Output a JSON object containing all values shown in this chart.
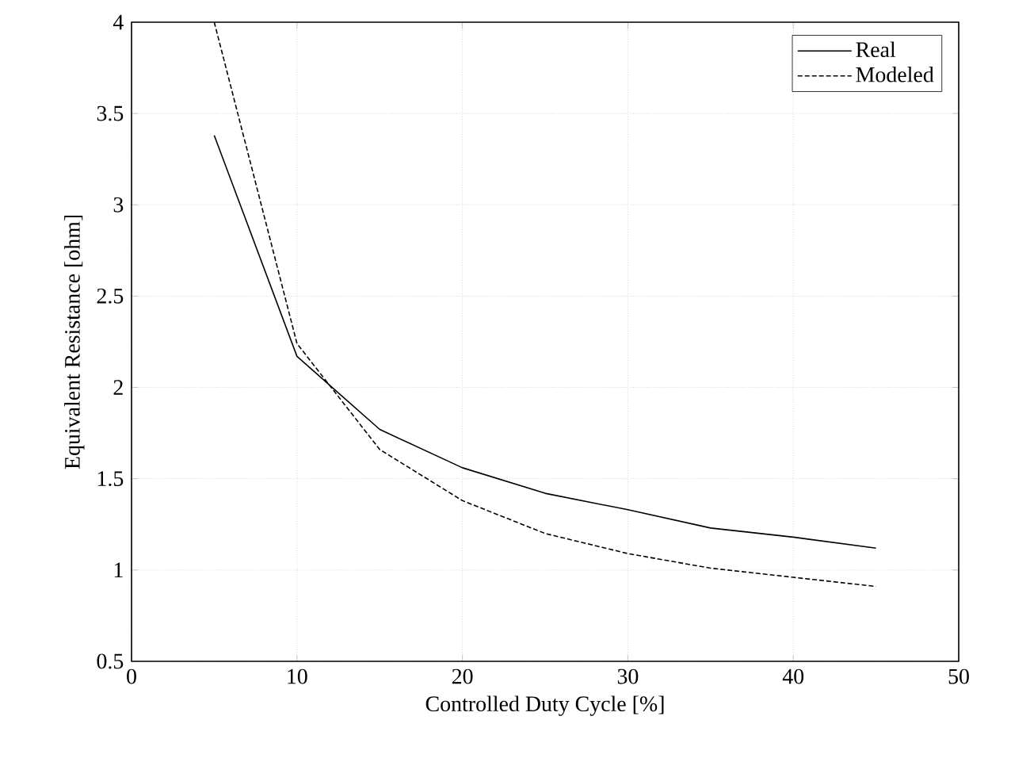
{
  "chart_data": {
    "type": "line",
    "xlabel": "Controlled Duty Cycle [%]",
    "ylabel": "Equivalent Resistance [ohm]",
    "x": [
      5,
      10,
      15,
      20,
      25,
      30,
      35,
      40,
      45
    ],
    "series": [
      {
        "name": "Real",
        "color": "#000000",
        "line_style": "solid",
        "values": [
          3.38,
          2.17,
          1.77,
          1.56,
          1.42,
          1.33,
          1.23,
          1.18,
          1.12
        ]
      },
      {
        "name": "Modeled",
        "color": "#000000",
        "line_style": "dashed",
        "values": [
          4.0,
          2.24,
          1.66,
          1.38,
          1.2,
          1.09,
          1.01,
          0.96,
          0.91
        ]
      }
    ],
    "xlim": [
      0,
      50
    ],
    "xticks": [
      0,
      10,
      20,
      30,
      40,
      50
    ],
    "ylim": [
      0.5,
      4
    ],
    "yticks": [
      0.5,
      1,
      1.5,
      2,
      2.5,
      3,
      3.5,
      4
    ],
    "grid": true,
    "legend": "top right",
    "marker": "none"
  }
}
